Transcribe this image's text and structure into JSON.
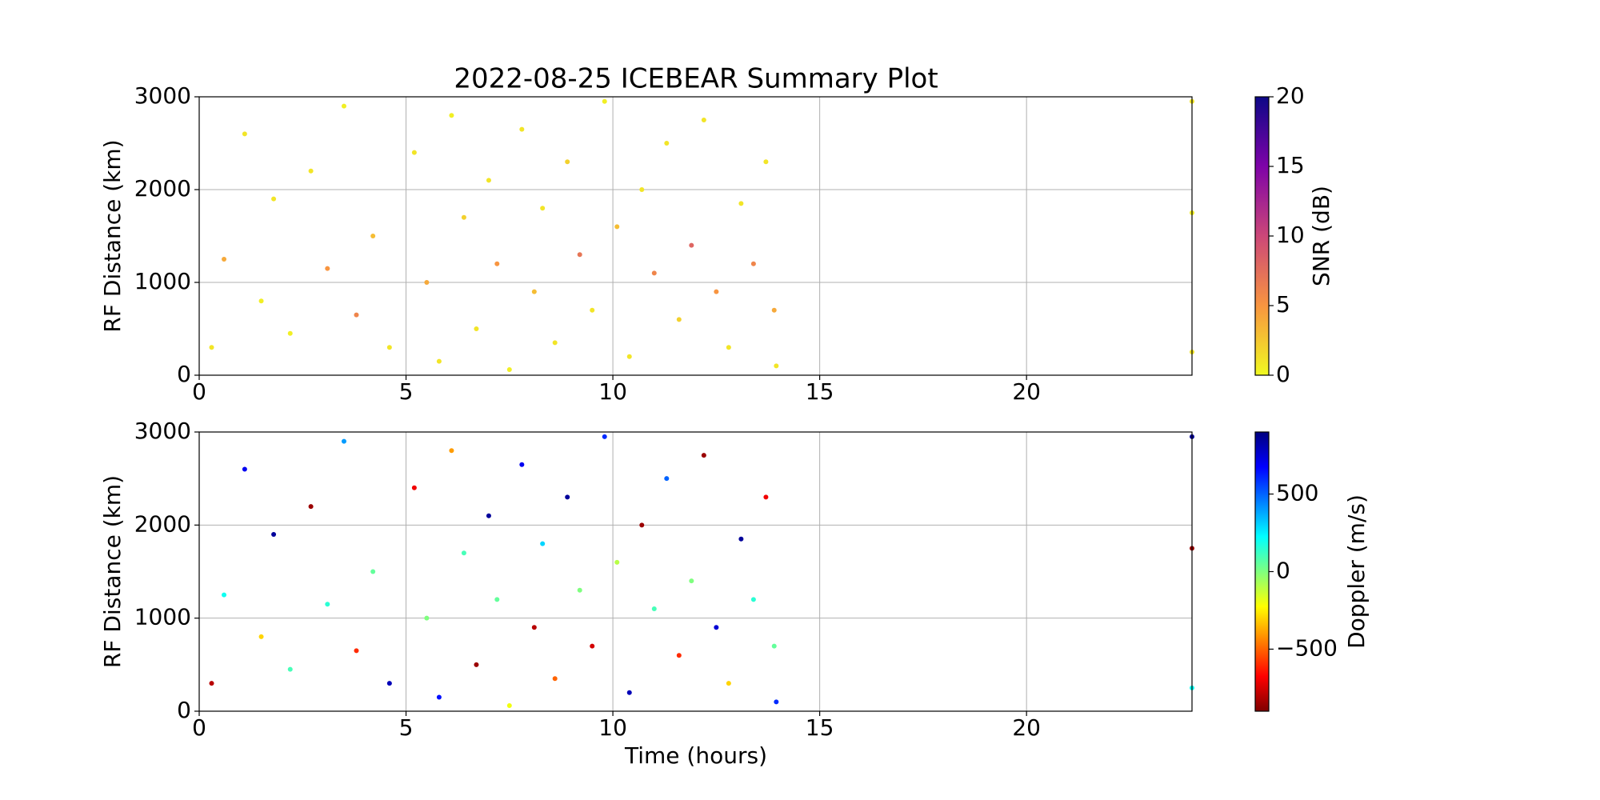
{
  "chart_data": [
    {
      "type": "scatter",
      "title": "2022-08-25 ICEBEAR Summary Plot",
      "ylabel": "RF Distance (km)",
      "xlim": [
        0,
        24
      ],
      "ylim": [
        0,
        3000
      ],
      "xticks": [
        0,
        5,
        10,
        15,
        20
      ],
      "yticks": [
        0,
        1000,
        2000,
        3000
      ],
      "grid": true,
      "x": [
        0.3,
        0.6,
        1.1,
        1.5,
        1.8,
        2.2,
        2.7,
        3.1,
        3.5,
        3.8,
        4.2,
        4.6,
        5.2,
        5.5,
        5.8,
        6.1,
        6.4,
        6.7,
        7.0,
        7.2,
        7.5,
        7.8,
        8.1,
        8.3,
        8.6,
        8.9,
        9.2,
        9.5,
        9.8,
        10.1,
        10.4,
        10.7,
        11.0,
        11.3,
        11.6,
        11.9,
        12.2,
        12.5,
        12.8,
        13.1,
        13.4,
        13.7,
        13.9,
        13.95,
        24.0,
        24.0,
        24.0
      ],
      "y": [
        300,
        1250,
        2600,
        800,
        1900,
        450,
        2200,
        1150,
        2900,
        650,
        1500,
        300,
        2400,
        1000,
        150,
        2800,
        1700,
        500,
        2100,
        1200,
        60,
        2650,
        900,
        1800,
        350,
        2300,
        1300,
        700,
        2950,
        1600,
        200,
        2000,
        1100,
        2500,
        600,
        1400,
        2750,
        900,
        300,
        1850,
        1200,
        2300,
        700,
        100,
        2950,
        1750,
        250
      ],
      "c": [
        1,
        4,
        1,
        0.5,
        1,
        0.5,
        1,
        5,
        0.5,
        6,
        3,
        1,
        1,
        4,
        1,
        0.5,
        2,
        1,
        1,
        5,
        0.5,
        1,
        3,
        1,
        1,
        2,
        7,
        1,
        0.5,
        3,
        1,
        1,
        6,
        1,
        2,
        8,
        1,
        5,
        1,
        1,
        6,
        1,
        4,
        1,
        1,
        0.5,
        1
      ],
      "colorbar": {
        "label": "SNR (dB)",
        "clim": [
          0,
          20
        ],
        "cticks": [
          0,
          5,
          10,
          15,
          20
        ],
        "colormap": "plasma_r"
      }
    },
    {
      "type": "scatter",
      "ylabel": "RF Distance (km)",
      "xlabel": "Time (hours)",
      "xlim": [
        0,
        24
      ],
      "ylim": [
        0,
        3000
      ],
      "xticks": [
        0,
        5,
        10,
        15,
        20
      ],
      "yticks": [
        0,
        1000,
        2000,
        3000
      ],
      "grid": true,
      "x": [
        0.3,
        0.6,
        1.1,
        1.5,
        1.8,
        2.2,
        2.7,
        3.1,
        3.5,
        3.8,
        4.2,
        4.6,
        5.2,
        5.5,
        5.8,
        6.1,
        6.4,
        6.7,
        7.0,
        7.2,
        7.5,
        7.8,
        8.1,
        8.3,
        8.6,
        8.9,
        9.2,
        9.5,
        9.8,
        10.1,
        10.4,
        10.7,
        11.0,
        11.3,
        11.6,
        11.9,
        12.2,
        12.5,
        12.8,
        13.1,
        13.4,
        13.7,
        13.9,
        13.95,
        24.0,
        24.0,
        24.0
      ],
      "y": [
        300,
        1250,
        2600,
        800,
        1900,
        450,
        2200,
        1150,
        2900,
        650,
        1500,
        300,
        2400,
        1000,
        150,
        2800,
        1700,
        500,
        2100,
        1200,
        60,
        2650,
        900,
        1800,
        350,
        2300,
        1300,
        700,
        2950,
        1600,
        200,
        2000,
        1100,
        2500,
        600,
        1400,
        2750,
        900,
        300,
        1850,
        1200,
        2300,
        700,
        100,
        2950,
        1750,
        250
      ],
      "c": [
        -800,
        200,
        700,
        -300,
        850,
        100,
        -850,
        150,
        400,
        -600,
        50,
        800,
        -700,
        0,
        650,
        -400,
        100,
        -850,
        850,
        50,
        -200,
        700,
        -800,
        300,
        -500,
        850,
        0,
        -750,
        600,
        -100,
        800,
        -850,
        100,
        500,
        -600,
        0,
        -850,
        750,
        -300,
        850,
        150,
        -700,
        50,
        600,
        850,
        -850,
        200
      ],
      "colorbar": {
        "label": "Doppler (m/s)",
        "clim": [
          -900,
          900
        ],
        "cticks": [
          {
            "value": -500,
            "label": "−500"
          },
          0,
          500
        ],
        "colormap": "jet_r"
      }
    }
  ]
}
